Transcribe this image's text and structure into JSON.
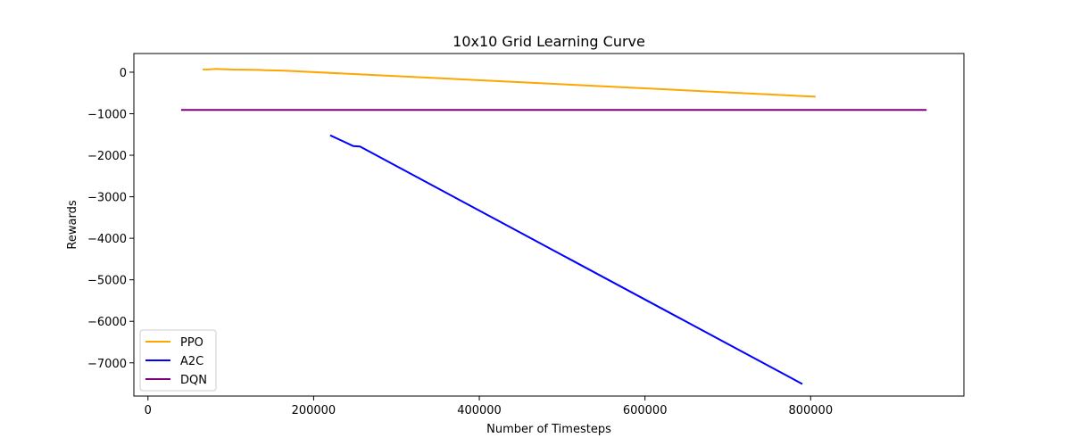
{
  "chart_data": {
    "type": "line",
    "title": "10x10 Grid Learning Curve",
    "xlabel": "Number of Timesteps",
    "ylabel": "Rewards",
    "xlim": [
      -17000,
      985000
    ],
    "ylim": [
      -7800,
      450
    ],
    "xticks": [
      0,
      200000,
      400000,
      600000,
      800000
    ],
    "xtick_labels": [
      "0",
      "200000",
      "400000",
      "600000",
      "800000"
    ],
    "yticks": [
      0,
      -1000,
      -2000,
      -3000,
      -4000,
      -5000,
      -6000,
      -7000
    ],
    "ytick_labels": [
      "0",
      "−1000",
      "−2000",
      "−3000",
      "−4000",
      "−5000",
      "−6000",
      "−7000"
    ],
    "grid": false,
    "legend_position": "lower-left",
    "series": [
      {
        "name": "PPO",
        "color": "#ffa500",
        "x": [
          66000,
          75000,
          82000,
          88000,
          96000,
          105000,
          115000,
          125000,
          135000,
          142000,
          148000,
          155000,
          162000,
          806000
        ],
        "y": [
          65,
          70,
          80,
          75,
          68,
          62,
          60,
          58,
          55,
          48,
          45,
          43,
          40,
          -590
        ]
      },
      {
        "name": "A2C",
        "color": "#0000ff",
        "x": [
          220000,
          248000,
          256000,
          790000
        ],
        "y": [
          -1520,
          -1780,
          -1790,
          -7510
        ]
      },
      {
        "name": "DQN",
        "color": "#800080",
        "x": [
          40000,
          940000
        ],
        "y": [
          -910,
          -910
        ]
      }
    ]
  }
}
